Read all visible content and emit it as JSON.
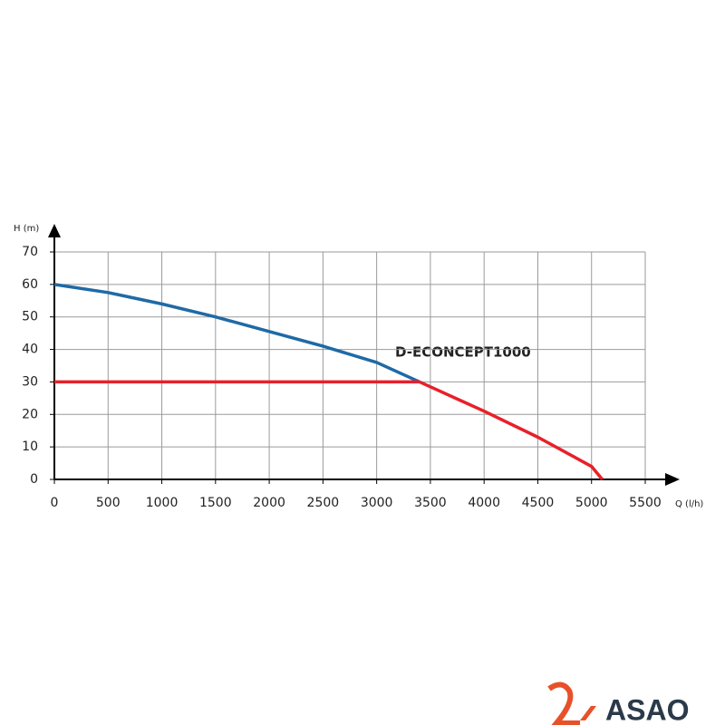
{
  "chart_data": {
    "type": "line",
    "annotation": "D-ECONCEPT1000",
    "x_label": "Q (l/h)",
    "y_label": "H (m)",
    "xlim": [
      0,
      5500
    ],
    "ylim": [
      0,
      70
    ],
    "xticks": [
      0,
      500,
      1000,
      1500,
      2000,
      2500,
      3000,
      3500,
      4000,
      4500,
      5000,
      5500
    ],
    "yticks": [
      0,
      10,
      20,
      30,
      40,
      50,
      60,
      70
    ],
    "grid": true,
    "series": [
      {
        "color": "#1f6aa5",
        "x": [
          0,
          500,
          1000,
          1500,
          2000,
          2500,
          3000,
          3400
        ],
        "values": [
          60,
          57.5,
          54,
          50,
          45.5,
          41,
          36,
          30
        ]
      },
      {
        "color": "#e8202a",
        "x": [
          3400,
          3500,
          4000,
          4500,
          5000,
          5100
        ],
        "values": [
          30,
          28.5,
          21,
          13,
          4,
          0
        ]
      },
      {
        "color": "#e8202a",
        "x": [
          0,
          3400
        ],
        "values": [
          30,
          30
        ]
      }
    ]
  },
  "brand": {
    "name": "ASAO"
  }
}
